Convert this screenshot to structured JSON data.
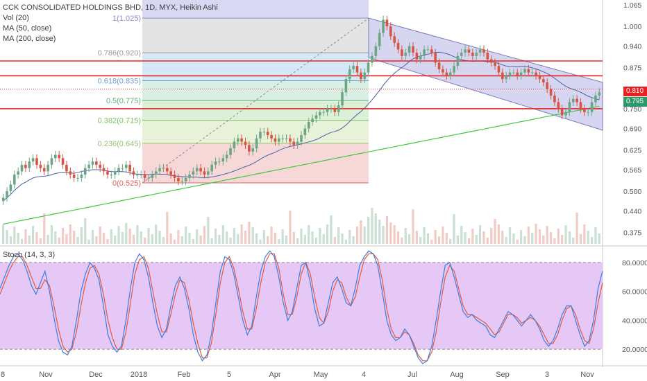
{
  "legend": {
    "title": "CCK CONSOLIDATED HOLDINGS BHD, 1D, MYX, Heikin Ashi",
    "vol": "Vol (20)",
    "ma50": "MA (50, close)",
    "ma200": "MA (200, close)",
    "stoch": "Stoch (14, 3, 3)"
  },
  "colors": {
    "up": "#6ba583",
    "down": "#d75442",
    "ma50": "#4a5fa8",
    "ma200": "#3fc93f",
    "hline": "#e82020",
    "stoch_k": "#3b7de0",
    "stoch_d": "#e05a3b",
    "stoch_band": "#e6c8f7"
  },
  "price_tags": {
    "last": "0.810",
    "close": "0.795"
  },
  "chart_data": [
    {
      "type": "candlestick",
      "title": "CCK CONSOLIDATED HOLDINGS BHD, 1D, MYX, Heikin Ashi",
      "x_ticks": [
        "8",
        "Nov",
        "Dec",
        "2018",
        "Feb",
        "5",
        "Apr",
        "May",
        "4",
        "Jul",
        "Aug",
        "Sep",
        "3",
        "Nov"
      ],
      "y_ticks": [
        "1.065",
        "1.000",
        "0.940",
        "0.875",
        "0.810",
        "0.750",
        "0.690",
        "0.625",
        "0.565",
        "0.500",
        "0.440",
        "0.375"
      ],
      "ylim": [
        0.34,
        1.08
      ],
      "horizontal_lines": [
        0.895,
        0.85,
        0.75
      ],
      "fibonacci": [
        {
          "label": "1(1.025)",
          "level": 1.025
        },
        {
          "label": "0.786(0.920)",
          "level": 0.92
        },
        {
          "label": "0.618(0.835)",
          "level": 0.835
        },
        {
          "label": "0.5(0.775)",
          "level": 0.775
        },
        {
          "label": "0.382(0.715)",
          "level": 0.715
        },
        {
          "label": "0.236(0.645)",
          "level": 0.645
        },
        {
          "label": "0(0.525)",
          "level": 0.525
        }
      ],
      "closes": [
        0.48,
        0.5,
        0.52,
        0.55,
        0.56,
        0.58,
        0.57,
        0.59,
        0.6,
        0.58,
        0.57,
        0.56,
        0.58,
        0.6,
        0.61,
        0.6,
        0.58,
        0.56,
        0.55,
        0.54,
        0.54,
        0.55,
        0.57,
        0.58,
        0.59,
        0.58,
        0.57,
        0.56,
        0.55,
        0.55,
        0.56,
        0.57,
        0.57,
        0.58,
        0.56,
        0.55,
        0.55,
        0.55,
        0.54,
        0.54,
        0.55,
        0.56,
        0.57,
        0.57,
        0.56,
        0.55,
        0.54,
        0.53,
        0.53,
        0.54,
        0.55,
        0.56,
        0.57,
        0.56,
        0.55,
        0.56,
        0.58,
        0.59,
        0.59,
        0.6,
        0.61,
        0.63,
        0.65,
        0.66,
        0.65,
        0.64,
        0.62,
        0.63,
        0.66,
        0.68,
        0.68,
        0.67,
        0.66,
        0.65,
        0.66,
        0.66,
        0.66,
        0.65,
        0.64,
        0.65,
        0.67,
        0.69,
        0.71,
        0.72,
        0.73,
        0.74,
        0.74,
        0.75,
        0.75,
        0.74,
        0.76,
        0.8,
        0.84,
        0.87,
        0.88,
        0.86,
        0.84,
        0.86,
        0.89,
        0.91,
        0.94,
        0.98,
        1.02,
        1.0,
        0.97,
        0.95,
        0.93,
        0.91,
        0.92,
        0.94,
        0.92,
        0.9,
        0.91,
        0.93,
        0.93,
        0.92,
        0.89,
        0.87,
        0.86,
        0.85,
        0.86,
        0.88,
        0.91,
        0.92,
        0.93,
        0.92,
        0.91,
        0.92,
        0.93,
        0.92,
        0.9,
        0.89,
        0.88,
        0.86,
        0.84,
        0.85,
        0.86,
        0.86,
        0.85,
        0.86,
        0.87,
        0.86,
        0.86,
        0.85,
        0.84,
        0.83,
        0.81,
        0.79,
        0.77,
        0.75,
        0.73,
        0.74,
        0.77,
        0.78,
        0.77,
        0.75,
        0.74,
        0.74,
        0.77,
        0.79,
        0.8
      ]
    },
    {
      "type": "line",
      "title": "Stoch (14, 3, 3)",
      "y_ticks": [
        "80.0000",
        "60.0000",
        "40.0000",
        "20.0000"
      ],
      "ylim": [
        10,
        90
      ],
      "band": [
        20,
        80
      ],
      "series": [
        {
          "name": "%K",
          "values": [
            62,
            70,
            78,
            84,
            86,
            82,
            74,
            64,
            58,
            66,
            74,
            60,
            42,
            26,
            18,
            16,
            22,
            40,
            60,
            72,
            80,
            76,
            68,
            50,
            30,
            22,
            18,
            22,
            40,
            62,
            80,
            86,
            82,
            70,
            52,
            36,
            28,
            34,
            50,
            64,
            70,
            62,
            48,
            30,
            18,
            12,
            16,
            30,
            52,
            74,
            84,
            82,
            72,
            56,
            40,
            30,
            36,
            56,
            74,
            84,
            88,
            84,
            70,
            52,
            40,
            46,
            62,
            78,
            80,
            66,
            48,
            36,
            38,
            52,
            66,
            70,
            62,
            52,
            50,
            62,
            78,
            84,
            88,
            86,
            78,
            60,
            40,
            30,
            26,
            28,
            34,
            30,
            22,
            14,
            10,
            12,
            22,
            40,
            60,
            78,
            80,
            70,
            58,
            46,
            42,
            44,
            40,
            38,
            36,
            30,
            28,
            34,
            40,
            46,
            44,
            40,
            36,
            40,
            44,
            40,
            34,
            26,
            22,
            26,
            34,
            44,
            50,
            50,
            40,
            30,
            22,
            26,
            40,
            62,
            74
          ]
        },
        {
          "name": "%D",
          "values": [
            58,
            66,
            74,
            80,
            84,
            84,
            78,
            70,
            62,
            62,
            68,
            64,
            50,
            34,
            22,
            18,
            20,
            32,
            50,
            66,
            76,
            78,
            72,
            58,
            40,
            28,
            20,
            20,
            32,
            52,
            72,
            82,
            84,
            76,
            60,
            44,
            32,
            32,
            44,
            58,
            68,
            66,
            54,
            38,
            24,
            14,
            14,
            24,
            44,
            66,
            80,
            84,
            76,
            62,
            46,
            34,
            34,
            48,
            66,
            80,
            86,
            86,
            76,
            58,
            44,
            44,
            56,
            72,
            80,
            72,
            56,
            42,
            38,
            46,
            60,
            68,
            66,
            56,
            50,
            56,
            70,
            82,
            86,
            86,
            82,
            68,
            48,
            34,
            28,
            28,
            32,
            30,
            24,
            16,
            12,
            12,
            18,
            32,
            52,
            70,
            78,
            74,
            62,
            50,
            44,
            44,
            42,
            40,
            38,
            34,
            30,
            32,
            38,
            44,
            44,
            42,
            38,
            40,
            42,
            40,
            36,
            30,
            24,
            24,
            30,
            40,
            48,
            50,
            44,
            34,
            26,
            24,
            34,
            52,
            66
          ]
        }
      ]
    }
  ]
}
